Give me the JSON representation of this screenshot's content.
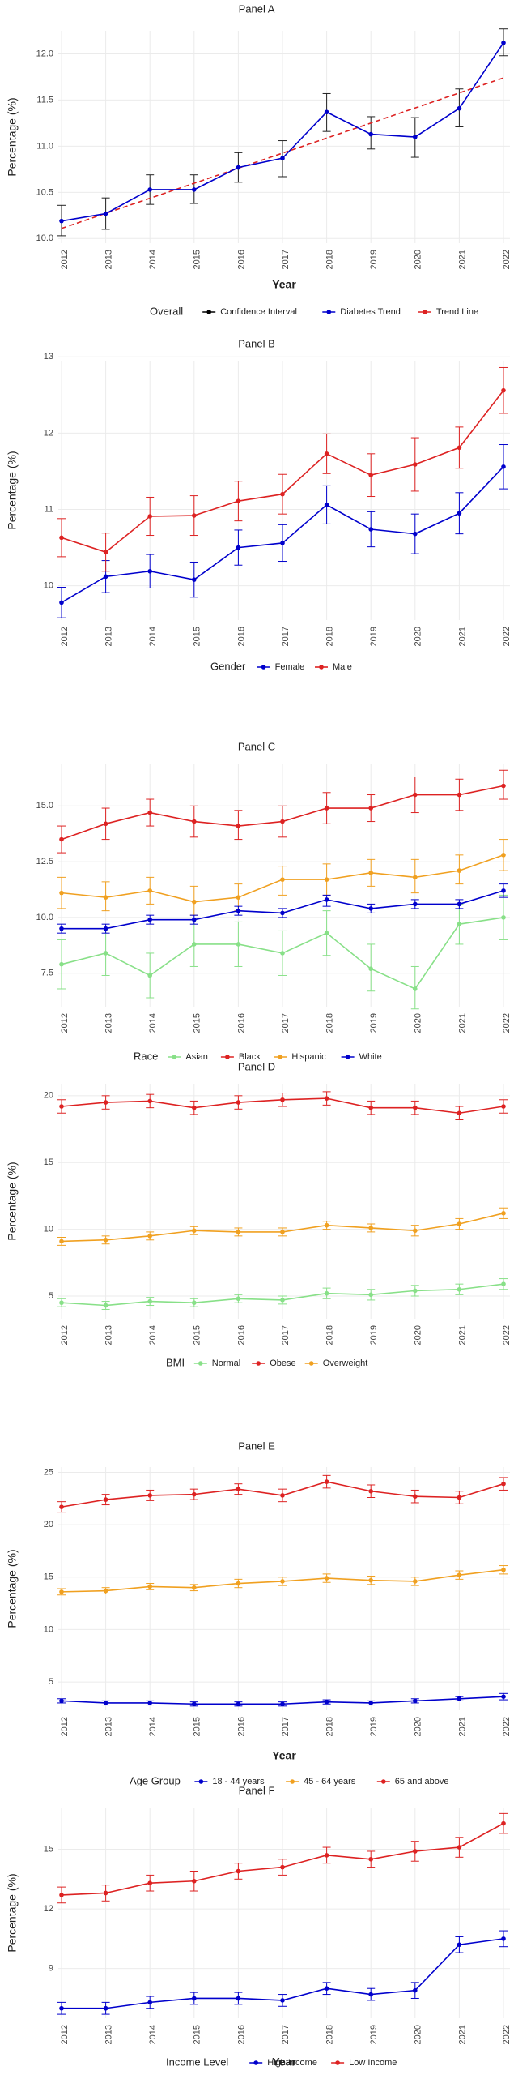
{
  "chart_data": [
    {
      "title": "Panel A",
      "type": "line",
      "xlabel": "Year",
      "ylabel": "Percentage (%)",
      "ylim": [
        9.95,
        12.25
      ],
      "yticks": [
        10.0,
        10.5,
        11.0,
        11.5,
        12.0
      ],
      "ytick_labels": [
        "10.0",
        "10.5",
        "11.0",
        "11.5",
        "12.0"
      ],
      "categories": [
        "2012",
        "2013",
        "2014",
        "2015",
        "2016",
        "2017",
        "2018",
        "2019",
        "2020",
        "2021",
        "2022"
      ],
      "legend_title": "Overall",
      "legend_entries": [
        {
          "label": "Confidence Interval",
          "color": "#000000"
        },
        {
          "label": "Diabetes Trend",
          "color": "#0000cc"
        },
        {
          "label": "Trend Line",
          "color": "#dd2222"
        }
      ],
      "series": [
        {
          "name": "Diabetes Trend",
          "color": "#0000cc",
          "values": [
            10.19,
            10.27,
            10.53,
            10.53,
            10.77,
            10.87,
            11.37,
            11.13,
            11.1,
            11.41,
            12.12
          ],
          "lower": [
            10.03,
            10.1,
            10.37,
            10.38,
            10.61,
            10.67,
            11.16,
            10.97,
            10.88,
            11.21,
            11.98
          ],
          "upper": [
            10.36,
            10.44,
            10.69,
            10.69,
            10.93,
            11.06,
            11.57,
            11.32,
            11.31,
            11.62,
            12.27
          ]
        }
      ],
      "trend_line": {
        "name": "Trend Line",
        "color": "#dd2222",
        "start": 10.11,
        "end": 11.74
      }
    },
    {
      "title": "Panel B",
      "type": "line",
      "xlabel": "",
      "ylabel": "Percentage (%)",
      "ylim": [
        9.55,
        12.95
      ],
      "yticks": [
        10,
        11,
        12,
        13
      ],
      "ytick_labels": [
        "10",
        "11",
        "12",
        "13"
      ],
      "categories": [
        "2012",
        "2013",
        "2014",
        "2015",
        "2016",
        "2017",
        "2018",
        "2019",
        "2020",
        "2021",
        "2022"
      ],
      "legend_title": "Gender",
      "legend_entries": [
        {
          "label": "Female",
          "color": "#0000cc"
        },
        {
          "label": "Male",
          "color": "#dd2222"
        }
      ],
      "series": [
        {
          "name": "Female",
          "color": "#0000cc",
          "values": [
            9.78,
            10.12,
            10.19,
            10.08,
            10.5,
            10.56,
            11.06,
            10.74,
            10.68,
            10.95,
            11.56
          ],
          "lower": [
            9.58,
            9.91,
            9.97,
            9.85,
            10.27,
            10.32,
            10.81,
            10.51,
            10.42,
            10.68,
            11.27
          ],
          "upper": [
            9.98,
            10.33,
            10.41,
            10.31,
            10.73,
            10.8,
            11.31,
            10.97,
            10.94,
            11.22,
            11.85
          ]
        },
        {
          "name": "Male",
          "color": "#dd2222",
          "values": [
            10.63,
            10.44,
            10.91,
            10.92,
            11.11,
            11.2,
            11.73,
            11.45,
            11.59,
            11.81,
            12.56
          ],
          "lower": [
            10.38,
            10.19,
            10.66,
            10.66,
            10.85,
            10.94,
            11.47,
            11.17,
            11.24,
            11.54,
            12.26
          ],
          "upper": [
            10.88,
            10.69,
            11.16,
            11.18,
            11.37,
            11.46,
            11.99,
            11.73,
            11.94,
            12.08,
            12.86
          ]
        }
      ]
    },
    {
      "title": "Panel C",
      "type": "line",
      "xlabel": "",
      "ylabel": "",
      "ylim": [
        6.0,
        16.9
      ],
      "yticks": [
        7.5,
        10.0,
        12.5,
        15.0
      ],
      "ytick_labels": [
        "7.5",
        "10.0",
        "12.5",
        "15.0"
      ],
      "categories": [
        "2012",
        "2013",
        "2014",
        "2015",
        "2016",
        "2017",
        "2018",
        "2019",
        "2020",
        "2021",
        "2022"
      ],
      "legend_title": "Race",
      "legend_entries": [
        {
          "label": "Asian",
          "color": "#88e088"
        },
        {
          "label": "Black",
          "color": "#dd2222"
        },
        {
          "label": "Hispanic",
          "color": "#f0a020"
        },
        {
          "label": "White",
          "color": "#0000cc"
        }
      ],
      "series": [
        {
          "name": "Asian",
          "color": "#88e088",
          "values": [
            7.9,
            8.4,
            7.4,
            8.8,
            8.8,
            8.4,
            9.3,
            7.7,
            6.8,
            9.7,
            10.0
          ],
          "lower": [
            6.8,
            7.4,
            6.4,
            7.8,
            7.8,
            7.4,
            8.3,
            6.7,
            5.9,
            8.8,
            9.0
          ],
          "upper": [
            9.0,
            9.4,
            8.4,
            9.8,
            9.8,
            9.4,
            10.3,
            8.8,
            7.8,
            10.6,
            11.0
          ]
        },
        {
          "name": "Black",
          "color": "#dd2222",
          "values": [
            13.5,
            14.2,
            14.7,
            14.3,
            14.1,
            14.3,
            14.9,
            14.9,
            15.5,
            15.5,
            15.9
          ],
          "lower": [
            12.9,
            13.5,
            14.1,
            13.6,
            13.5,
            13.6,
            14.2,
            14.3,
            14.7,
            14.8,
            15.3
          ],
          "upper": [
            14.1,
            14.9,
            15.3,
            15.0,
            14.8,
            15.0,
            15.6,
            15.5,
            16.3,
            16.2,
            16.6
          ]
        },
        {
          "name": "Hispanic",
          "color": "#f0a020",
          "values": [
            11.1,
            10.9,
            11.2,
            10.7,
            10.9,
            11.7,
            11.7,
            12.0,
            11.8,
            12.1,
            12.8
          ],
          "lower": [
            10.4,
            10.3,
            10.6,
            10.1,
            10.3,
            11.0,
            11.0,
            11.4,
            11.1,
            11.5,
            12.1
          ],
          "upper": [
            11.8,
            11.6,
            11.8,
            11.4,
            11.5,
            12.3,
            12.4,
            12.6,
            12.6,
            12.8,
            13.5
          ]
        },
        {
          "name": "White",
          "color": "#0000cc",
          "values": [
            9.5,
            9.5,
            9.9,
            9.9,
            10.3,
            10.2,
            10.8,
            10.4,
            10.6,
            10.6,
            11.2
          ],
          "lower": [
            9.3,
            9.3,
            9.7,
            9.7,
            10.1,
            10.0,
            10.5,
            10.2,
            10.4,
            10.4,
            10.9
          ],
          "upper": [
            9.7,
            9.7,
            10.1,
            10.1,
            10.5,
            10.4,
            11.0,
            10.6,
            10.8,
            10.8,
            11.5
          ]
        }
      ]
    },
    {
      "title": "Panel D",
      "type": "line",
      "xlabel": "",
      "ylabel": "Percentage (%)",
      "ylim": [
        3.3,
        20.9
      ],
      "yticks": [
        5,
        10,
        15,
        20
      ],
      "ytick_labels": [
        "5",
        "10",
        "15",
        "20"
      ],
      "categories": [
        "2012",
        "2013",
        "2014",
        "2015",
        "2016",
        "2017",
        "2018",
        "2019",
        "2020",
        "2021",
        "2022"
      ],
      "legend_title": "BMI",
      "legend_entries": [
        {
          "label": "Normal",
          "color": "#88e088"
        },
        {
          "label": "Obese",
          "color": "#dd2222"
        },
        {
          "label": "Overweight",
          "color": "#f0a020"
        }
      ],
      "series": [
        {
          "name": "Normal",
          "color": "#88e088",
          "values": [
            4.5,
            4.3,
            4.6,
            4.5,
            4.8,
            4.7,
            5.2,
            5.1,
            5.4,
            5.5,
            5.9
          ],
          "lower": [
            4.2,
            4.0,
            4.3,
            4.2,
            4.5,
            4.4,
            4.8,
            4.7,
            5.0,
            5.1,
            5.5
          ],
          "upper": [
            4.8,
            4.6,
            4.9,
            4.8,
            5.1,
            5.0,
            5.6,
            5.5,
            5.8,
            5.9,
            6.3
          ]
        },
        {
          "name": "Obese",
          "color": "#dd2222",
          "values": [
            19.2,
            19.5,
            19.6,
            19.1,
            19.5,
            19.7,
            19.8,
            19.1,
            19.1,
            18.7,
            19.2
          ],
          "lower": [
            18.7,
            19.0,
            19.1,
            18.6,
            19.0,
            19.2,
            19.3,
            18.6,
            18.6,
            18.2,
            18.7
          ],
          "upper": [
            19.7,
            20.0,
            20.1,
            19.6,
            20.0,
            20.2,
            20.3,
            19.6,
            19.6,
            19.2,
            19.7
          ]
        },
        {
          "name": "Overweight",
          "color": "#f0a020",
          "values": [
            9.1,
            9.2,
            9.5,
            9.9,
            9.8,
            9.8,
            10.3,
            10.1,
            9.9,
            10.4,
            11.2
          ],
          "lower": [
            8.8,
            8.9,
            9.2,
            9.6,
            9.5,
            9.5,
            10.0,
            9.8,
            9.5,
            10.0,
            10.8
          ],
          "upper": [
            9.4,
            9.5,
            9.8,
            10.2,
            10.1,
            10.1,
            10.6,
            10.4,
            10.3,
            10.8,
            11.6
          ]
        }
      ]
    },
    {
      "title": "Panel E",
      "type": "line",
      "xlabel": "Year",
      "ylabel": "Percentage (%)",
      "ylim": [
        2.3,
        25.5
      ],
      "yticks": [
        5,
        10,
        15,
        20,
        25
      ],
      "ytick_labels": [
        "5",
        "10",
        "15",
        "20",
        "25"
      ],
      "categories": [
        "2012",
        "2013",
        "2014",
        "2015",
        "2016",
        "2017",
        "2018",
        "2019",
        "2020",
        "2021",
        "2022"
      ],
      "legend_title": "Age Group",
      "legend_entries": [
        {
          "label": "18 - 44 years",
          "color": "#0000cc"
        },
        {
          "label": "45 - 64 years",
          "color": "#f0a020"
        },
        {
          "label": "65 and above",
          "color": "#dd2222"
        }
      ],
      "series": [
        {
          "name": "18 - 44 years",
          "color": "#0000cc",
          "values": [
            3.2,
            3.0,
            3.0,
            2.9,
            2.9,
            2.9,
            3.1,
            3.0,
            3.2,
            3.4,
            3.6
          ],
          "lower": [
            3.0,
            2.8,
            2.8,
            2.7,
            2.7,
            2.7,
            2.9,
            2.8,
            3.0,
            3.2,
            3.3
          ],
          "upper": [
            3.4,
            3.2,
            3.2,
            3.1,
            3.1,
            3.1,
            3.3,
            3.2,
            3.4,
            3.6,
            3.9
          ]
        },
        {
          "name": "45 - 64 years",
          "color": "#f0a020",
          "values": [
            13.6,
            13.7,
            14.1,
            14.0,
            14.4,
            14.6,
            14.9,
            14.7,
            14.6,
            15.2,
            15.7
          ],
          "lower": [
            13.3,
            13.4,
            13.8,
            13.7,
            14.0,
            14.2,
            14.5,
            14.3,
            14.2,
            14.8,
            15.3
          ],
          "upper": [
            13.9,
            14.0,
            14.4,
            14.3,
            14.8,
            15.0,
            15.3,
            15.1,
            15.0,
            15.6,
            16.1
          ]
        },
        {
          "name": "65 and above",
          "color": "#dd2222",
          "values": [
            21.7,
            22.4,
            22.8,
            22.9,
            23.4,
            22.8,
            24.1,
            23.2,
            22.7,
            22.6,
            23.9
          ],
          "lower": [
            21.2,
            21.9,
            22.3,
            22.4,
            22.9,
            22.2,
            23.5,
            22.6,
            22.1,
            22.0,
            23.3
          ],
          "upper": [
            22.2,
            22.9,
            23.3,
            23.4,
            23.9,
            23.4,
            24.7,
            23.8,
            23.3,
            23.2,
            24.5
          ]
        }
      ]
    },
    {
      "title": "Panel F",
      "type": "line",
      "xlabel": "Year",
      "ylabel": "Percentage (%)",
      "ylim": [
        6.5,
        17.1
      ],
      "yticks": [
        9,
        12,
        15
      ],
      "ytick_labels": [
        "9",
        "12",
        "15"
      ],
      "categories": [
        "2012",
        "2013",
        "2014",
        "2015",
        "2016",
        "2017",
        "2018",
        "2019",
        "2020",
        "2021",
        "2022"
      ],
      "legend_title": "Income Level",
      "legend_entries": [
        {
          "label": "High Income",
          "color": "#0000cc"
        },
        {
          "label": "Low Income",
          "color": "#dd2222"
        }
      ],
      "series": [
        {
          "name": "High Income",
          "color": "#0000cc",
          "values": [
            7.0,
            7.0,
            7.3,
            7.5,
            7.5,
            7.4,
            8.0,
            7.7,
            7.9,
            10.2,
            10.5
          ],
          "lower": [
            6.7,
            6.7,
            7.0,
            7.2,
            7.2,
            7.1,
            7.7,
            7.4,
            7.5,
            9.8,
            10.1
          ],
          "upper": [
            7.3,
            7.3,
            7.6,
            7.8,
            7.8,
            7.7,
            8.3,
            8.0,
            8.3,
            10.6,
            10.9
          ]
        },
        {
          "name": "Low Income",
          "color": "#dd2222",
          "values": [
            12.7,
            12.8,
            13.3,
            13.4,
            13.9,
            14.1,
            14.7,
            14.5,
            14.9,
            15.1,
            16.3
          ],
          "lower": [
            12.3,
            12.4,
            12.9,
            12.9,
            13.5,
            13.7,
            14.3,
            14.1,
            14.4,
            14.6,
            15.8
          ],
          "upper": [
            13.1,
            13.2,
            13.7,
            13.9,
            14.3,
            14.5,
            15.1,
            14.9,
            15.4,
            15.6,
            16.8
          ]
        }
      ]
    }
  ]
}
